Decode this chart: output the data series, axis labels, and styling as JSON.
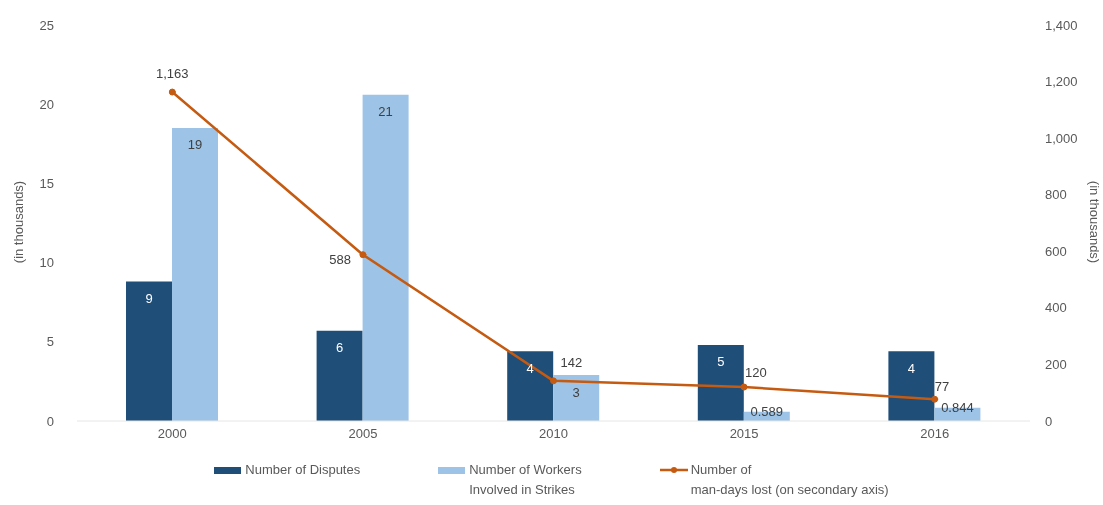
{
  "chart_data": {
    "type": "bar",
    "categories": [
      "2000",
      "2005",
      "2010",
      "2015",
      "2016"
    ],
    "ylabel": "(in thousands)",
    "y2label": "(in thousands)",
    "ylim": [
      0,
      25
    ],
    "yticks": [
      0,
      5,
      10,
      15,
      20,
      25
    ],
    "y2lim": [
      0,
      1400
    ],
    "y2ticks": [
      0,
      200,
      400,
      600,
      800,
      {
        "value": 1000,
        "label": "1,000"
      },
      {
        "value": 1200,
        "label": "1,200"
      },
      {
        "value": 1400,
        "label": "1,400"
      }
    ],
    "series": [
      {
        "name": "Number of Disputes",
        "color": "#1f4e79",
        "values": [
          8.8,
          5.7,
          4.4,
          4.8,
          4.4
        ],
        "value_labels": [
          "9",
          "6",
          "4",
          "5",
          "4"
        ]
      },
      {
        "name": "Number of Workers\nInvolved in Strikes",
        "color": "#9dc3e6",
        "values": [
          18.5,
          20.6,
          2.9,
          0.589,
          0.844
        ],
        "value_labels": [
          "19",
          "21",
          "3",
          "0.589",
          "0.844"
        ]
      },
      {
        "name": "Number of\nman-days lost (on secondary axis)",
        "type": "line",
        "axis": "y2",
        "color": "#c55a11",
        "values": [
          1163,
          588,
          142,
          120,
          77
        ],
        "value_labels": [
          "1,163",
          "588",
          "142",
          "120",
          "77"
        ]
      }
    ],
    "marker": "circle",
    "grid": false,
    "legend": "bottom"
  }
}
